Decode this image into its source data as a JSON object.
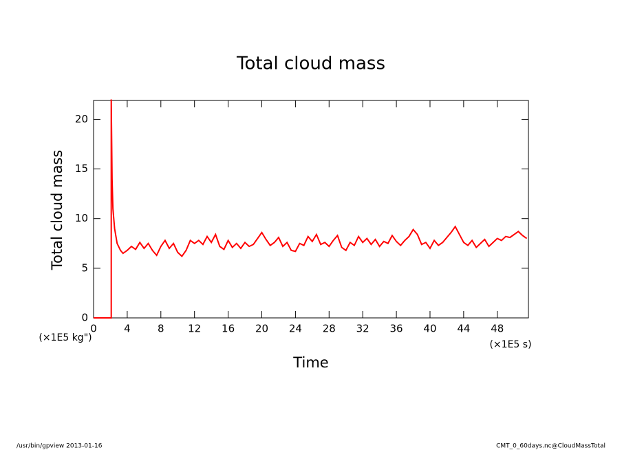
{
  "chart_data": {
    "type": "line",
    "title": "Total cloud mass",
    "y_label": "Total cloud mass",
    "x_label": "Time",
    "y_unit": "(×1E5 kg\")",
    "x_unit": "(×1E5 s)",
    "footer_left": "/usr/bin/gpview  2013-01-16",
    "footer_right": "CMT_0_60days.nc@CloudMassTotal",
    "color": "#ff0000",
    "xlim": [
      0,
      51.7
    ],
    "ylim": [
      0,
      21.9
    ],
    "xticks": [
      0,
      4,
      8,
      12,
      16,
      20,
      24,
      28,
      32,
      36,
      40,
      44,
      48
    ],
    "yticks": [
      0,
      5,
      10,
      15,
      20
    ],
    "x": [
      0,
      2.1,
      2.1,
      2.2,
      2.3,
      2.5,
      2.8,
      3.2,
      3.5,
      4,
      4.5,
      5,
      5.5,
      6,
      6.5,
      7,
      7.5,
      8,
      8.5,
      9,
      9.5,
      10,
      10.5,
      11,
      11.5,
      12,
      12.5,
      13,
      13.5,
      14,
      14.5,
      15,
      15.5,
      16,
      16.5,
      17,
      17.5,
      18,
      18.5,
      19,
      19.5,
      20,
      20.5,
      21,
      21.5,
      22,
      22.5,
      23,
      23.5,
      24,
      24.5,
      25,
      25.5,
      26,
      26.5,
      27,
      27.5,
      28,
      28.5,
      29,
      29.5,
      30,
      30.5,
      31,
      31.5,
      32,
      32.5,
      33,
      33.5,
      34,
      34.5,
      35,
      35.5,
      36,
      36.5,
      37,
      37.5,
      38,
      38.5,
      39,
      39.5,
      40,
      40.5,
      41,
      41.5,
      42,
      42.5,
      43,
      43.5,
      44,
      44.5,
      45,
      45.5,
      46,
      46.5,
      47,
      47.5,
      48,
      48.5,
      49,
      49.5,
      50,
      50.5,
      51,
      51.5
    ],
    "values": [
      0,
      0,
      22,
      14,
      11,
      9,
      7.5,
      6.8,
      6.5,
      6.8,
      7.2,
      6.9,
      7.6,
      7.0,
      7.5,
      6.8,
      6.3,
      7.2,
      7.8,
      7.0,
      7.5,
      6.6,
      6.2,
      6.8,
      7.8,
      7.5,
      7.8,
      7.4,
      8.2,
      7.6,
      8.4,
      7.2,
      6.9,
      7.8,
      7.1,
      7.5,
      7.0,
      7.6,
      7.2,
      7.4,
      8.0,
      8.6,
      7.9,
      7.3,
      7.6,
      8.1,
      7.2,
      7.6,
      6.8,
      6.7,
      7.5,
      7.3,
      8.2,
      7.7,
      8.4,
      7.4,
      7.6,
      7.2,
      7.8,
      8.3,
      7.1,
      6.8,
      7.6,
      7.3,
      8.2,
      7.6,
      8.0,
      7.4,
      7.9,
      7.2,
      7.7,
      7.5,
      8.3,
      7.7,
      7.3,
      7.8,
      8.2,
      8.9,
      8.4,
      7.4,
      7.6,
      7.0,
      7.8,
      7.3,
      7.6,
      8.1,
      8.6,
      9.2,
      8.4,
      7.6,
      7.3,
      7.8,
      7.1,
      7.5,
      7.9,
      7.2,
      7.6,
      8.0,
      7.8,
      8.2,
      8.1,
      8.4,
      8.7,
      8.3,
      8.0
    ]
  }
}
